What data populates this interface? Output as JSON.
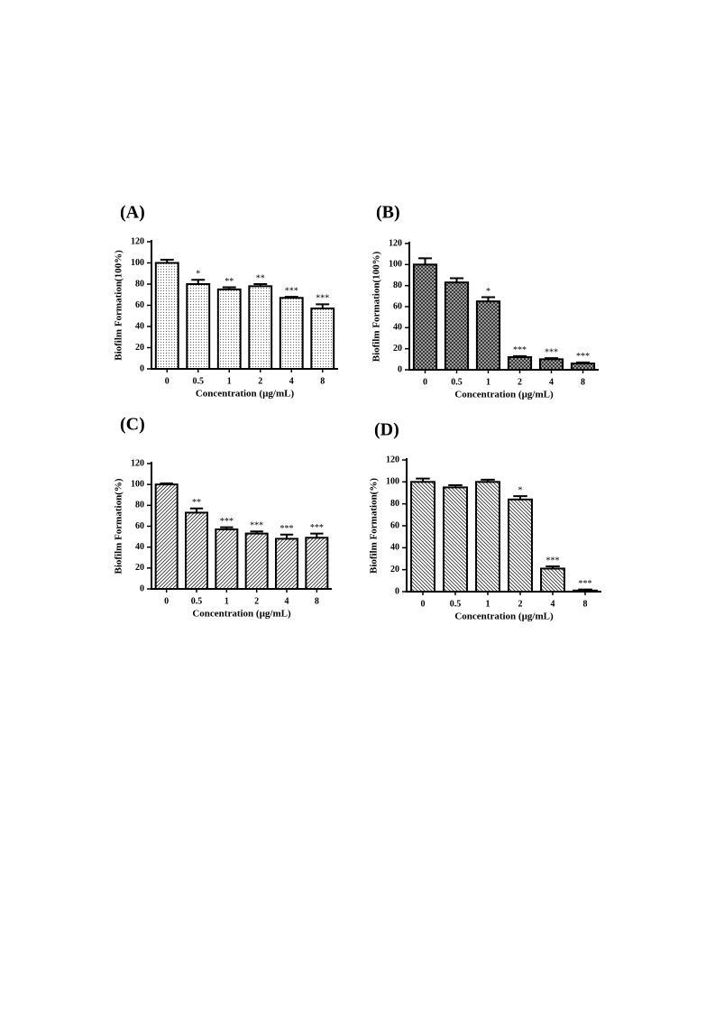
{
  "chart_data": [
    {
      "type": "bar",
      "title": "(A)",
      "pattern": "dots",
      "categories": [
        "0",
        "0.5",
        "1",
        "2",
        "4",
        "8"
      ],
      "values": [
        100,
        80,
        75,
        78,
        67,
        57
      ],
      "errors": [
        3,
        4,
        2,
        2,
        1,
        4
      ],
      "annotations": [
        null,
        "*",
        "**",
        "**",
        "***",
        "***"
      ],
      "ylim": [
        0,
        120
      ],
      "yticks": [
        0,
        20,
        40,
        60,
        80,
        100,
        120
      ],
      "ylabel": "Biofilm Formation(100%)",
      "xlabel": "Concentration (µg/mL)"
    },
    {
      "type": "bar",
      "title": "(B)",
      "pattern": "crosshatch",
      "categories": [
        "0",
        "0.5",
        "1",
        "2",
        "4",
        "8"
      ],
      "values": [
        100,
        83,
        65,
        12,
        10,
        6
      ],
      "errors": [
        6,
        4,
        4,
        1,
        1,
        1
      ],
      "annotations": [
        null,
        null,
        "*",
        "***",
        "***",
        "***"
      ],
      "ylim": [
        0,
        120
      ],
      "yticks": [
        0,
        20,
        40,
        60,
        80,
        100,
        120
      ],
      "ylabel": "Biofilm Formation(100%)",
      "xlabel": "Concentration (µg/mL)"
    },
    {
      "type": "bar",
      "title": "(C)",
      "pattern": "hatch",
      "categories": [
        "0",
        "0.5",
        "1",
        "2",
        "4",
        "8"
      ],
      "values": [
        100,
        73,
        57,
        53,
        48,
        49
      ],
      "errors": [
        1,
        4,
        2,
        2,
        4,
        4
      ],
      "annotations": [
        null,
        "**",
        "***",
        "***",
        "***",
        "***"
      ],
      "ylim": [
        0,
        120
      ],
      "yticks": [
        0,
        20,
        40,
        60,
        80,
        100,
        120
      ],
      "ylabel": "Biofilm Formation(%)",
      "xlabel": "Concentration (µg/mL)"
    },
    {
      "type": "bar",
      "title": "(D)",
      "pattern": "hatch-reverse",
      "categories": [
        "0",
        "0.5",
        "1",
        "2",
        "4",
        "8"
      ],
      "values": [
        100,
        95,
        100,
        84,
        21,
        1
      ],
      "errors": [
        3,
        2,
        2,
        3,
        2,
        1
      ],
      "annotations": [
        null,
        null,
        null,
        "*",
        "***",
        "***"
      ],
      "ylim": [
        0,
        120
      ],
      "yticks": [
        0,
        20,
        40,
        60,
        80,
        100,
        120
      ],
      "ylabel": "Biofilm Formation(%)",
      "xlabel": "Concentration (µg/mL)"
    }
  ]
}
